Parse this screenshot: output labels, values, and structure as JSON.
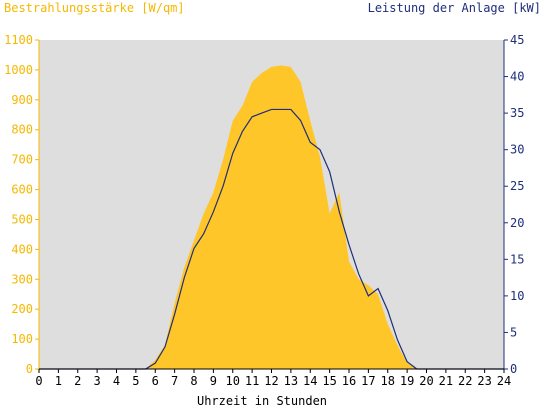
{
  "chart_data": {
    "type": "area",
    "title_left": "Bestrahlungsstärke [W/qm]",
    "title_right": "Leistung der Anlage [kW]",
    "xlabel": "Uhrzeit in Stunden",
    "x_ticks": [
      "0",
      "1",
      "2",
      "3",
      "4",
      "5",
      "6",
      "7",
      "8",
      "9",
      "10",
      "11",
      "12",
      "13",
      "14",
      "15",
      "16",
      "17",
      "18",
      "19",
      "20",
      "21",
      "22",
      "23",
      "24"
    ],
    "y_left_ticks": [
      "0",
      "100",
      "200",
      "300",
      "400",
      "500",
      "600",
      "700",
      "800",
      "900",
      "1000",
      "1100"
    ],
    "y_right_ticks": [
      "0",
      "5",
      "10",
      "15",
      "20",
      "25",
      "30",
      "35",
      "40",
      "45"
    ],
    "xlim": [
      0,
      24
    ],
    "ylim_left": [
      0,
      1100
    ],
    "ylim_right": [
      0,
      45
    ],
    "grid": false,
    "colors": {
      "plot_bg": "#dedede",
      "irradiance": "#ffc629",
      "power": "#1f2f7a",
      "left_axis": "#f5b800",
      "right_axis": "#1f2f7a"
    },
    "series": [
      {
        "name": "Bestrahlungsstärke",
        "axis": "left",
        "x": [
          0,
          5.5,
          6,
          6.5,
          7,
          7.5,
          8,
          8.5,
          9,
          9.5,
          10,
          10.5,
          11,
          11.5,
          12,
          12.5,
          13,
          13.5,
          14,
          14.5,
          15,
          15.5,
          16,
          16.5,
          17,
          17.5,
          18,
          18.5,
          19,
          19.5,
          24
        ],
        "values": [
          0,
          0,
          30,
          80,
          220,
          340,
          430,
          520,
          590,
          700,
          830,
          880,
          960,
          990,
          1010,
          1015,
          1010,
          960,
          830,
          710,
          520,
          590,
          360,
          300,
          280,
          250,
          150,
          80,
          20,
          0,
          0
        ]
      },
      {
        "name": "Leistung der Anlage",
        "axis": "right",
        "x": [
          0,
          5.5,
          6,
          6.5,
          7,
          7.5,
          8,
          8.5,
          9,
          9.5,
          10,
          10.5,
          11,
          11.5,
          12,
          12.5,
          13,
          13.5,
          14,
          14.5,
          15,
          15.5,
          16,
          16.5,
          17,
          17.5,
          18,
          18.5,
          19,
          19.5,
          24
        ],
        "values": [
          0,
          0,
          0.8,
          3,
          7.5,
          12.5,
          16.5,
          18.5,
          21.5,
          25,
          29.5,
          32.5,
          34.5,
          35,
          35.5,
          35.5,
          35.5,
          34,
          31,
          30,
          27,
          21.5,
          17,
          13,
          10,
          11,
          8,
          4,
          1,
          0,
          0
        ]
      }
    ]
  }
}
